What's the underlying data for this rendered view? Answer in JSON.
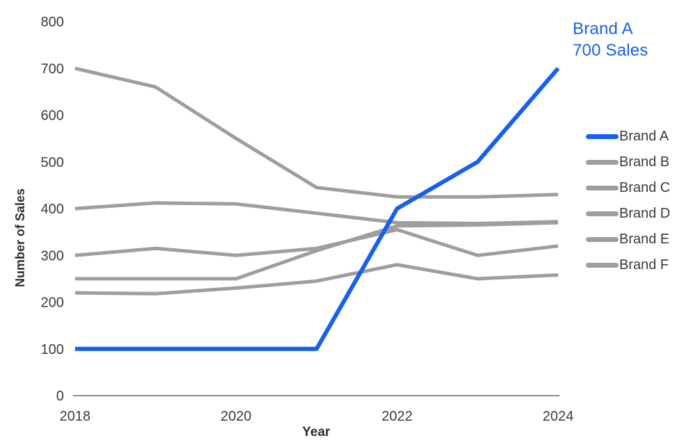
{
  "chart_data": {
    "type": "line",
    "title": "",
    "xlabel": "Year",
    "ylabel": "Number of Sales",
    "x": [
      2018,
      2019,
      2020,
      2021,
      2022,
      2023,
      2024
    ],
    "x_tick_values": [
      2018,
      2020,
      2022,
      2024
    ],
    "x_tick_labels": [
      "2018",
      "2020",
      "2022",
      "2024"
    ],
    "y_ticks": [
      0,
      100,
      200,
      300,
      400,
      500,
      600,
      700,
      800
    ],
    "ylim": [
      0,
      800
    ],
    "xlim": [
      2018,
      2024
    ],
    "grid": false,
    "legend_position": "right",
    "series": [
      {
        "name": "Brand A",
        "color": "#1461f0",
        "emphasis": true,
        "values": [
          100,
          100,
          100,
          100,
          400,
          500,
          700
        ]
      },
      {
        "name": "Brand B",
        "color": "#9e9e9e",
        "emphasis": false,
        "values": [
          700,
          660,
          550,
          445,
          425,
          425,
          430
        ]
      },
      {
        "name": "Brand C",
        "color": "#9e9e9e",
        "emphasis": false,
        "values": [
          400,
          412,
          410,
          390,
          370,
          368,
          372
        ]
      },
      {
        "name": "Brand D",
        "color": "#9e9e9e",
        "emphasis": false,
        "values": [
          300,
          315,
          300,
          315,
          355,
          300,
          320
        ]
      },
      {
        "name": "Brand E",
        "color": "#9e9e9e",
        "emphasis": false,
        "values": [
          250,
          250,
          250,
          310,
          363,
          365,
          370
        ]
      },
      {
        "name": "Brand F",
        "color": "#9e9e9e",
        "emphasis": false,
        "values": [
          220,
          218,
          230,
          245,
          280,
          250,
          258
        ]
      }
    ],
    "annotation": {
      "lines": [
        "Brand A",
        "700 Sales"
      ],
      "color": "#1461f0"
    },
    "axis_color": "#8c8c8c",
    "tick_text_color": "#3b3b3b"
  }
}
